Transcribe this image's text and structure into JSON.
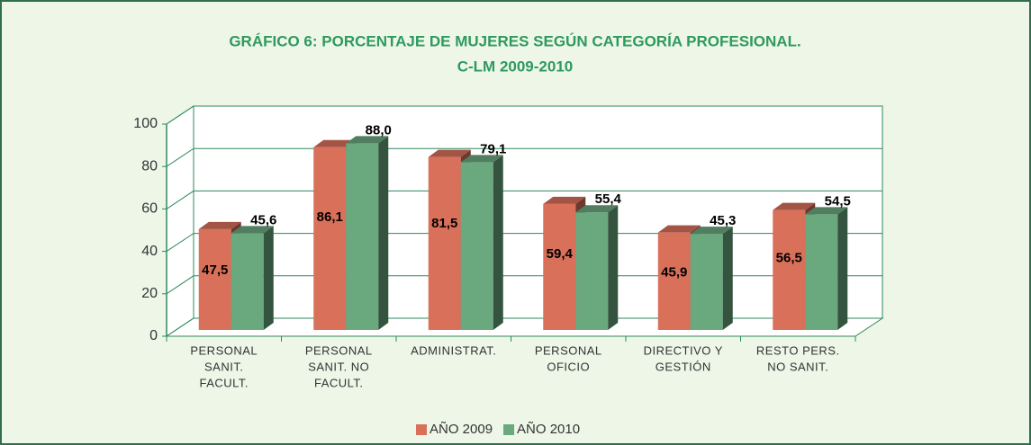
{
  "chart_data": {
    "type": "bar3d",
    "title": [
      "GRÁFICO 6: PORCENTAJE DE MUJERES SEGÚN CATEGORÍA PROFESIONAL.",
      "C-LM 2009-2010"
    ],
    "categories": [
      [
        "PERSONAL",
        "SANIT.",
        "FACULT."
      ],
      [
        "PERSONAL",
        "SANIT. NO",
        "FACULT."
      ],
      [
        "ADMINISTRAT."
      ],
      [
        "PERSONAL",
        "OFICIO"
      ],
      [
        "DIRECTIVO Y",
        "GESTIÓN"
      ],
      [
        "RESTO PERS.",
        "NO SANIT."
      ]
    ],
    "series": [
      {
        "name": "AÑO 2009",
        "color": "#d9705a",
        "values": [
          47.5,
          86.1,
          81.5,
          59.4,
          45.9,
          56.5
        ],
        "value_labels": [
          "47,5",
          "86,1",
          "81,5",
          "59,4",
          "45,9",
          "56,5"
        ]
      },
      {
        "name": "AÑO 2010",
        "color": "#6aa87e",
        "values": [
          45.6,
          88.0,
          79.1,
          55.4,
          45.3,
          54.5
        ],
        "value_labels": [
          "45,6",
          "88,0",
          "79,1",
          "55,4",
          "45,3",
          "54,5"
        ]
      }
    ],
    "ylim": [
      0,
      100
    ],
    "yticks": [
      0,
      20,
      40,
      60,
      80,
      100
    ],
    "grid": true,
    "legend": "bottom"
  }
}
